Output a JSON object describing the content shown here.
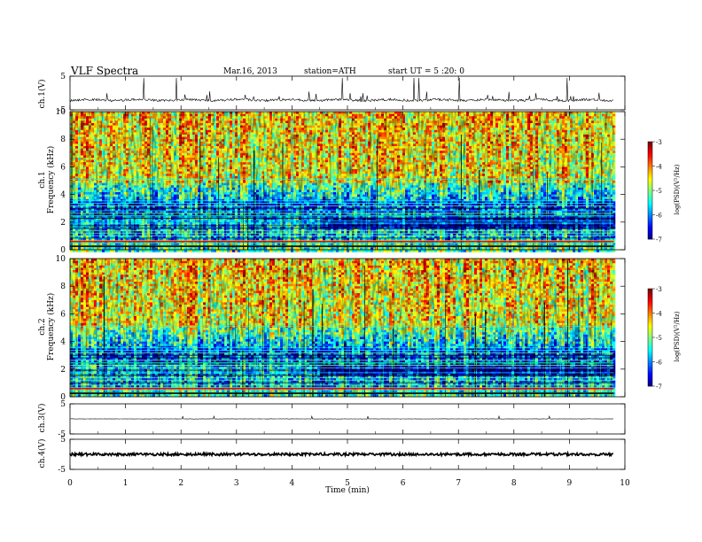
{
  "header": {
    "title": "VLF  Spectra",
    "date": "Mar.16, 2013",
    "station": "station=ATH",
    "start": "start  UT  =   5  :20: 0"
  },
  "chart_data": [
    {
      "type": "line",
      "panel": "ch1-waveform",
      "ylabel": "ch.1(V)",
      "ylim": [
        -5,
        5
      ],
      "yticks": [
        "5",
        "-5"
      ],
      "baseline": -2.1
    },
    {
      "type": "heatmap",
      "panel": "ch1-spectrogram",
      "ylabel": [
        "ch.1",
        "Frequency (kHz)"
      ],
      "ylim": [
        0,
        10
      ],
      "yticks": [
        "0",
        "2",
        "4",
        "6",
        "8",
        "10"
      ],
      "colorbar": {
        "label": "log(PSD)(V²/Hz)",
        "ticks": [
          "-3",
          "-4",
          "-5",
          "-6",
          "-7"
        ],
        "range": [
          -7,
          -3
        ]
      }
    },
    {
      "type": "heatmap",
      "panel": "ch2-spectrogram",
      "ylabel": [
        "ch.2",
        "Frequency (kHz)"
      ],
      "ylim": [
        0,
        10
      ],
      "yticks": [
        "0",
        "2",
        "4",
        "6",
        "8",
        "10"
      ],
      "colorbar": {
        "label": "log(PSD)(V²/Hz)",
        "ticks": [
          "-3",
          "-4",
          "-5",
          "-6",
          "-7"
        ],
        "range": [
          -7,
          -3
        ]
      }
    },
    {
      "type": "line",
      "panel": "ch3-waveform",
      "ylabel": "ch.3(V)",
      "ylim": [
        -5,
        5
      ],
      "yticks": [
        "5",
        "-5"
      ],
      "baseline": 0
    },
    {
      "type": "line",
      "panel": "ch4-waveform",
      "ylabel": "ch.4(V)",
      "ylim": [
        -5,
        5
      ],
      "yticks": [
        "5",
        "-5"
      ],
      "baseline": 0
    }
  ],
  "xaxis": {
    "label": "Time  (min)",
    "ticks": [
      "0",
      "1",
      "2",
      "3",
      "4",
      "5",
      "6",
      "7",
      "8",
      "9",
      "10"
    ],
    "xlim": [
      0,
      10
    ],
    "data_end": 9.8
  }
}
